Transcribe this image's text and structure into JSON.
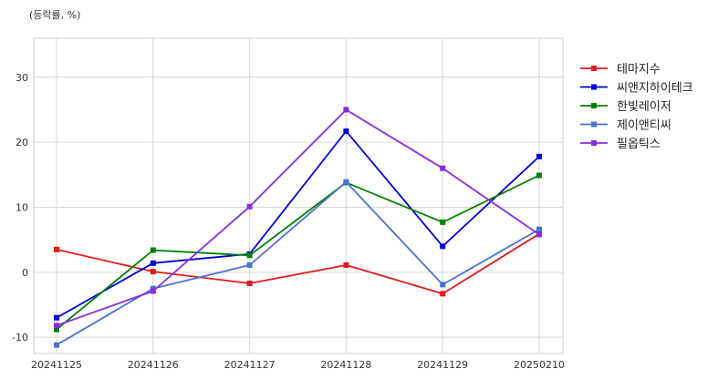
{
  "chart_data": {
    "type": "line",
    "ylabel": "(등락률, %)",
    "x": [
      "20241125",
      "20241126",
      "20241127",
      "20241128",
      "20241129",
      "20250210"
    ],
    "ylim": [
      -12.5,
      36
    ],
    "yticks": [
      -10,
      0,
      10,
      20,
      30
    ],
    "grid": true,
    "legend_position": "right",
    "series": [
      {
        "name": "테마지수",
        "color": "#e31a1c",
        "values": [
          3.5,
          0.1,
          -1.7,
          1.1,
          -3.3,
          5.9
        ]
      },
      {
        "name": "씨앤지하이테크",
        "color": "#0000dd",
        "values": [
          -7.0,
          1.4,
          2.8,
          21.7,
          4.0,
          17.8
        ]
      },
      {
        "name": "한빛레이저",
        "color": "#008000",
        "values": [
          -8.8,
          3.4,
          2.6,
          13.8,
          7.7,
          14.9
        ]
      },
      {
        "name": "제이앤티씨",
        "color": "#4a72d0",
        "values": [
          -11.2,
          -2.5,
          1.1,
          13.9,
          -1.9,
          6.6
        ]
      },
      {
        "name": "필옵틱스",
        "color": "#8a2be2",
        "values": [
          -8.2,
          -2.9,
          10.1,
          25.0,
          16.0,
          5.8
        ]
      }
    ]
  }
}
